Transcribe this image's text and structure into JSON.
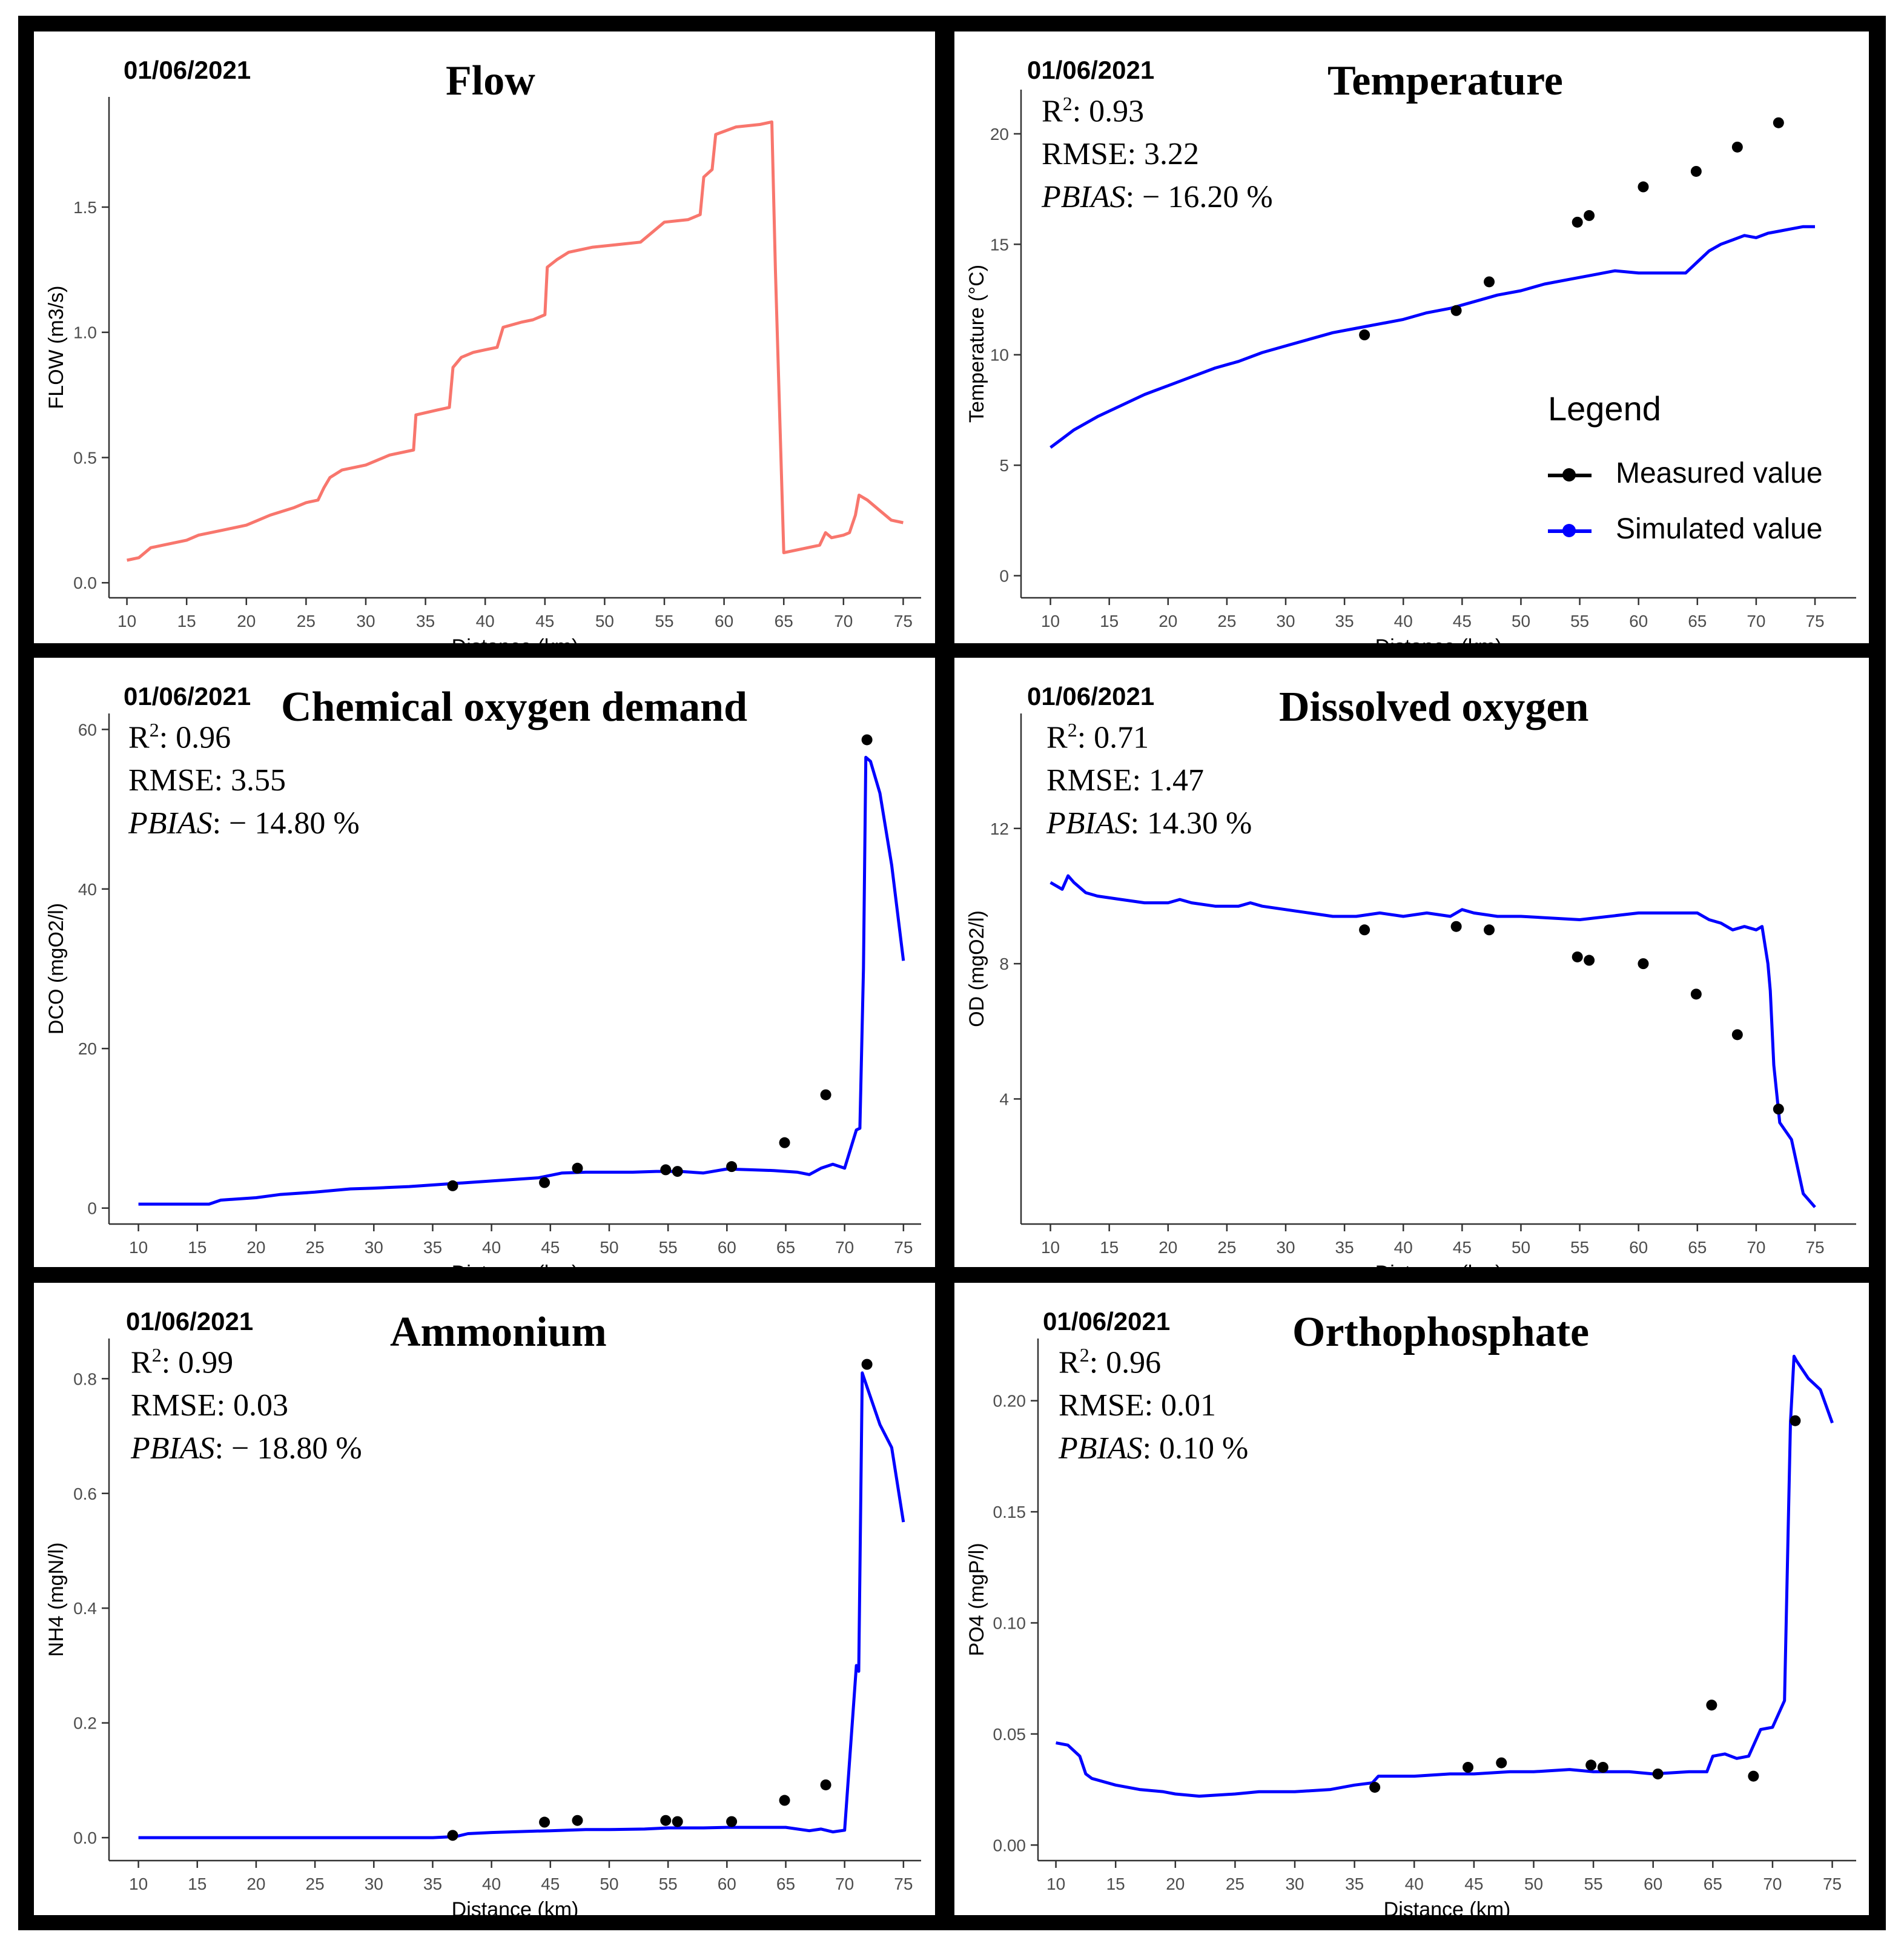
{
  "figure": {
    "legend": {
      "title": "Legend",
      "measured": "Measured value",
      "simulated": "Simulated value",
      "measured_color": "#000000",
      "simulated_color": "#0000ff"
    }
  },
  "panels": [
    {
      "date": "01/06/2021",
      "title": "Flow",
      "stats": null
    },
    {
      "date": "01/06/2021",
      "title": "Temperature",
      "stats": {
        "r2_label": "R",
        "r2_sup": "2",
        "r2_value": ": 0.93",
        "rmse": "RMSE:  3.22",
        "pbias_label": "PBIAS",
        "pbias_value": ": − 16.20 %"
      }
    },
    {
      "date": "01/06/2021",
      "title": "Chemical  oxygen  demand",
      "stats": {
        "r2_label": "R",
        "r2_sup": "2",
        "r2_value": ": 0.96",
        "rmse": "RMSE:  3.55",
        "pbias_label": "PBIAS",
        "pbias_value": ": − 14.80 %"
      }
    },
    {
      "date": "01/06/2021",
      "title": "Dissolved  oxygen",
      "stats": {
        "r2_label": "R",
        "r2_sup": "2",
        "r2_value": ": 0.71",
        "rmse": "RMSE:  1.47",
        "pbias_label": "PBIAS",
        "pbias_value": ": 14.30 %"
      }
    },
    {
      "date": "01/06/2021",
      "title": "Ammonium",
      "stats": {
        "r2_label": "R",
        "r2_sup": "2",
        "r2_value": ": 0.99",
        "rmse": "RMSE:  0.03",
        "pbias_label": "PBIAS",
        "pbias_value": ": − 18.80 %"
      }
    },
    {
      "date": "01/06/2021",
      "title": "Orthophosphate",
      "stats": {
        "r2_label": "R",
        "r2_sup": "2",
        "r2_value": ": 0.96",
        "rmse": "RMSE:  0.01",
        "pbias_label": "PBIAS",
        "pbias_value": ": 0.10 %"
      }
    }
  ],
  "chart_data": [
    {
      "type": "line",
      "title": "Flow",
      "xlabel": "Distance (km)",
      "ylabel": "FLOW (m3/s)",
      "xlim": [
        8.5,
        76.5
      ],
      "ylim": [
        -0.06,
        1.94
      ],
      "xticks": [
        10,
        15,
        20,
        25,
        30,
        35,
        40,
        45,
        50,
        55,
        60,
        65,
        70,
        75
      ],
      "yticks": [
        0.0,
        0.5,
        1.0,
        1.5
      ],
      "ytick_labels": [
        "0.0",
        "0.5",
        "1.0",
        "1.5"
      ],
      "grid": false,
      "series": [
        {
          "name": "Simulated value",
          "color": "#f8766d",
          "x": [
            10,
            11,
            11.5,
            12,
            13,
            15,
            16,
            18,
            20,
            21,
            22,
            24,
            25,
            26,
            26.5,
            27,
            28,
            30,
            31,
            32,
            34,
            34.2,
            36,
            37,
            37.3,
            38,
            39,
            40,
            41,
            41.5,
            43,
            44,
            45,
            45.2,
            46,
            47,
            49,
            51,
            53,
            54,
            55,
            57,
            58,
            58.3,
            59,
            59.3,
            61,
            63,
            64,
            64.3,
            65,
            67,
            68,
            68.5,
            69,
            70,
            70.5,
            71,
            71.3,
            72,
            73,
            74,
            75
          ],
          "y": [
            0.09,
            0.1,
            0.12,
            0.14,
            0.15,
            0.17,
            0.19,
            0.21,
            0.23,
            0.25,
            0.27,
            0.3,
            0.32,
            0.33,
            0.38,
            0.42,
            0.45,
            0.47,
            0.49,
            0.51,
            0.53,
            0.67,
            0.69,
            0.7,
            0.86,
            0.9,
            0.92,
            0.93,
            0.94,
            1.02,
            1.04,
            1.05,
            1.07,
            1.26,
            1.29,
            1.32,
            1.34,
            1.35,
            1.36,
            1.4,
            1.44,
            1.45,
            1.47,
            1.62,
            1.65,
            1.79,
            1.82,
            1.83,
            1.84,
            1.25,
            0.12,
            0.14,
            0.15,
            0.2,
            0.18,
            0.19,
            0.2,
            0.27,
            0.35,
            0.33,
            0.29,
            0.25,
            0.24
          ]
        }
      ]
    },
    {
      "type": "line",
      "title": "Temperature",
      "xlabel": "Distance (km)",
      "ylabel": "Temperature (°C)",
      "xlim": [
        7.5,
        78.5
      ],
      "ylim": [
        -1,
        22
      ],
      "xticks": [
        10,
        15,
        20,
        25,
        30,
        35,
        40,
        45,
        50,
        55,
        60,
        65,
        70,
        75
      ],
      "yticks": [
        0,
        5,
        10,
        15,
        20
      ],
      "ytick_labels": [
        "0",
        "5",
        "10",
        "15",
        "20"
      ],
      "grid": false,
      "series": [
        {
          "name": "Simulated value",
          "color": "#0000ff",
          "x": [
            10,
            11,
            12,
            14,
            16,
            18,
            20,
            22,
            24,
            26,
            28,
            30,
            32,
            34,
            36,
            38,
            40,
            42,
            44,
            46,
            48,
            50,
            52,
            54,
            56,
            58,
            60,
            62,
            64,
            65,
            66,
            67,
            68,
            69,
            70,
            71,
            72,
            73,
            74,
            75
          ],
          "y": [
            5.8,
            6.2,
            6.6,
            7.2,
            7.7,
            8.2,
            8.6,
            9.0,
            9.4,
            9.7,
            10.1,
            10.4,
            10.7,
            11.0,
            11.2,
            11.4,
            11.6,
            11.9,
            12.1,
            12.4,
            12.7,
            12.9,
            13.2,
            13.4,
            13.6,
            13.8,
            13.7,
            13.7,
            13.7,
            14.2,
            14.7,
            15.0,
            15.2,
            15.4,
            15.3,
            15.5,
            15.6,
            15.7,
            15.8,
            15.8
          ]
        },
        {
          "name": "Measured value",
          "color": "#000000",
          "x": [
            36.7,
            44.5,
            47.3,
            54.8,
            55.8,
            60.4,
            64.9,
            68.4,
            71.9
          ],
          "y": [
            10.9,
            12.0,
            13.3,
            16.0,
            16.3,
            17.6,
            18.3,
            19.4,
            20.5
          ]
        }
      ],
      "legend": "right"
    },
    {
      "type": "line",
      "title": "Chemical  oxygen  demand",
      "xlabel": "Distance (km)",
      "ylabel": "DCO (mgO2/l)",
      "xlim": [
        7.5,
        76.5
      ],
      "ylim": [
        -2,
        62
      ],
      "xticks": [
        10,
        15,
        20,
        25,
        30,
        35,
        40,
        45,
        50,
        55,
        60,
        65,
        70,
        75
      ],
      "yticks": [
        0,
        20,
        40,
        60
      ],
      "ytick_labels": [
        "0",
        "20",
        "40",
        "60"
      ],
      "grid": false,
      "series": [
        {
          "name": "Simulated value",
          "color": "#0000ff",
          "x": [
            10,
            12,
            14,
            16,
            17,
            20,
            22,
            25,
            28,
            30,
            33,
            36,
            38,
            40,
            42,
            44,
            46,
            48,
            50,
            52,
            54,
            56,
            58,
            60,
            62,
            64,
            66,
            67,
            68,
            69,
            70,
            71,
            71.3,
            71.6,
            71.8,
            72.2,
            73,
            74,
            75
          ],
          "y": [
            0.5,
            0.5,
            0.5,
            0.5,
            1.0,
            1.3,
            1.7,
            2.0,
            2.4,
            2.5,
            2.7,
            3.0,
            3.2,
            3.4,
            3.6,
            3.8,
            4.4,
            4.5,
            4.5,
            4.5,
            4.6,
            4.6,
            4.4,
            4.9,
            4.8,
            4.7,
            4.5,
            4.2,
            5.0,
            5.5,
            5.0,
            9.8,
            10.0,
            30,
            56.5,
            56.0,
            52.0,
            43.0,
            31.0
          ]
        },
        {
          "name": "Measured value",
          "color": "#000000",
          "x": [
            36.7,
            44.5,
            47.3,
            54.8,
            55.8,
            60.4,
            64.9,
            68.4,
            71.9
          ],
          "y": [
            2.8,
            3.2,
            5.0,
            4.8,
            4.6,
            5.2,
            8.2,
            14.2,
            58.7
          ]
        }
      ]
    },
    {
      "type": "line",
      "title": "Dissolved  oxygen",
      "xlabel": "Distance (km)",
      "ylabel": "OD (mgO2/l)",
      "xlim": [
        7.5,
        78.5
      ],
      "ylim": [
        0.3,
        15.4
      ],
      "xticks": [
        10,
        15,
        20,
        25,
        30,
        35,
        40,
        45,
        50,
        55,
        60,
        65,
        70,
        75
      ],
      "yticks": [
        4,
        8,
        12
      ],
      "ytick_labels": [
        "4",
        "8",
        "12"
      ],
      "grid": false,
      "series": [
        {
          "name": "Simulated value",
          "color": "#0000ff",
          "x": [
            10,
            11,
            11.5,
            12,
            13,
            14,
            16,
            18,
            20,
            21,
            22,
            24,
            26,
            27,
            28,
            30,
            32,
            34,
            36,
            38,
            40,
            42,
            44,
            45,
            46,
            48,
            50,
            55,
            60,
            65,
            66,
            67,
            68,
            69,
            70,
            70.5,
            71,
            71.2,
            71.5,
            72,
            73,
            74,
            75
          ],
          "y": [
            10.4,
            10.2,
            10.6,
            10.4,
            10.1,
            10.0,
            9.9,
            9.8,
            9.8,
            9.9,
            9.8,
            9.7,
            9.7,
            9.8,
            9.7,
            9.6,
            9.5,
            9.4,
            9.4,
            9.5,
            9.4,
            9.5,
            9.4,
            9.6,
            9.5,
            9.4,
            9.4,
            9.3,
            9.5,
            9.5,
            9.3,
            9.2,
            9.0,
            9.1,
            9.0,
            9.1,
            8.0,
            7.2,
            5.0,
            3.3,
            2.8,
            1.2,
            0.8
          ]
        },
        {
          "name": "Measured value",
          "color": "#000000",
          "x": [
            36.7,
            44.5,
            47.3,
            54.8,
            55.8,
            60.4,
            64.9,
            68.4,
            71.9
          ],
          "y": [
            9.0,
            9.1,
            9.0,
            8.2,
            8.1,
            8.0,
            7.1,
            5.9,
            3.7
          ]
        }
      ]
    },
    {
      "type": "line",
      "title": "Ammonium",
      "xlabel": "Distance (km)",
      "ylabel": "NH4 (mgN/l)",
      "xlim": [
        7.5,
        76.5
      ],
      "ylim": [
        -0.04,
        0.87
      ],
      "xticks": [
        10,
        15,
        20,
        25,
        30,
        35,
        40,
        45,
        50,
        55,
        60,
        65,
        70,
        75
      ],
      "yticks": [
        0.0,
        0.2,
        0.4,
        0.6,
        0.8
      ],
      "ytick_labels": [
        "0.0",
        "0.2",
        "0.4",
        "0.6",
        "0.8"
      ],
      "grid": false,
      "series": [
        {
          "name": "Simulated value",
          "color": "#0000ff",
          "x": [
            10,
            20,
            30,
            35,
            37,
            38,
            40,
            43,
            45,
            48,
            50,
            53,
            55,
            58,
            60,
            63,
            65,
            67,
            68,
            69,
            70,
            71,
            71.2,
            71.5,
            72,
            73,
            74,
            75
          ],
          "y": [
            0.0,
            0.0,
            0.0,
            0.0,
            0.002,
            0.007,
            0.009,
            0.011,
            0.012,
            0.014,
            0.014,
            0.015,
            0.017,
            0.017,
            0.018,
            0.018,
            0.018,
            0.012,
            0.015,
            0.01,
            0.013,
            0.3,
            0.29,
            0.81,
            0.78,
            0.72,
            0.68,
            0.55
          ]
        },
        {
          "name": "Measured value",
          "color": "#000000",
          "x": [
            36.7,
            44.5,
            47.3,
            54.8,
            55.8,
            60.4,
            64.9,
            68.4,
            71.9
          ],
          "y": [
            0.004,
            0.027,
            0.03,
            0.03,
            0.028,
            0.028,
            0.065,
            0.092,
            0.825
          ]
        }
      ]
    },
    {
      "type": "line",
      "title": "Orthophosphate",
      "xlabel": "Distance (km)",
      "ylabel": "PO4 (mgP/l)",
      "xlim": [
        8.5,
        77
      ],
      "ylim": [
        -0.007,
        0.228
      ],
      "xticks": [
        10,
        15,
        20,
        25,
        30,
        35,
        40,
        45,
        50,
        55,
        60,
        65,
        70,
        75
      ],
      "yticks": [
        0.0,
        0.05,
        0.1,
        0.15,
        0.2
      ],
      "ytick_labels": [
        "0.00",
        "0.05",
        "0.10",
        "0.15",
        "0.20"
      ],
      "grid": false,
      "series": [
        {
          "name": "Simulated value",
          "color": "#0000ff",
          "x": [
            10,
            11,
            12,
            12.5,
            13,
            15,
            17,
            19,
            20,
            22,
            25,
            27,
            30,
            33,
            35,
            36.5,
            37,
            40,
            43,
            45,
            48,
            50,
            53,
            55,
            58,
            60,
            63,
            64.5,
            65,
            66,
            67,
            68,
            69,
            70,
            71,
            71.5,
            71.8,
            72,
            73,
            74,
            75
          ],
          "y": [
            0.046,
            0.045,
            0.04,
            0.032,
            0.03,
            0.027,
            0.025,
            0.024,
            0.023,
            0.022,
            0.023,
            0.024,
            0.024,
            0.025,
            0.027,
            0.028,
            0.031,
            0.031,
            0.032,
            0.032,
            0.033,
            0.033,
            0.034,
            0.033,
            0.033,
            0.032,
            0.033,
            0.033,
            0.04,
            0.041,
            0.039,
            0.04,
            0.052,
            0.053,
            0.065,
            0.19,
            0.22,
            0.218,
            0.21,
            0.205,
            0.19
          ]
        },
        {
          "name": "Measured value",
          "color": "#000000",
          "x": [
            36.7,
            44.5,
            47.3,
            54.8,
            55.8,
            60.4,
            64.9,
            68.4,
            71.9
          ],
          "y": [
            0.026,
            0.035,
            0.037,
            0.036,
            0.035,
            0.032,
            0.063,
            0.031,
            0.191
          ]
        }
      ]
    }
  ]
}
